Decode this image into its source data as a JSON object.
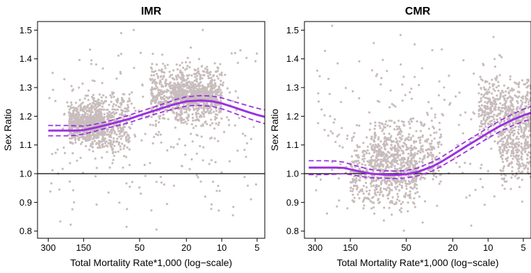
{
  "chart_data": [
    {
      "type": "scatter",
      "title": "IMR",
      "xlabel": "Total Mortality Rate*1,000 (log−scale)",
      "ylabel": "Sex Ratio",
      "x_scale": "log",
      "x_reversed": true,
      "xlim": [
        370,
        4.3
      ],
      "ylim": [
        0.775,
        1.53
      ],
      "x_ticks": [
        300,
        150,
        50,
        20,
        10,
        5
      ],
      "x_tick_labels": [
        "300",
        "150",
        "50",
        "20",
        "10",
        "5"
      ],
      "y_ticks": [
        0.8,
        0.9,
        1.0,
        1.1,
        1.2,
        1.3,
        1.4,
        1.5
      ],
      "y_tick_labels": [
        "0.8",
        "0.9",
        "1.0",
        "1.1",
        "1.2",
        "1.3",
        "1.4",
        "1.5"
      ],
      "reference_line": {
        "y": 1.0,
        "color": "#000000"
      },
      "fit": {
        "x": [
          300,
          250,
          200,
          170,
          150,
          120,
          100,
          80,
          60,
          50,
          40,
          30,
          25,
          20,
          15,
          12,
          10,
          8,
          6,
          5,
          4.3
        ],
        "y": [
          1.15,
          1.15,
          1.15,
          1.15,
          1.152,
          1.16,
          1.168,
          1.178,
          1.192,
          1.203,
          1.216,
          1.232,
          1.242,
          1.252,
          1.255,
          1.252,
          1.245,
          1.232,
          1.215,
          1.205,
          1.198
        ],
        "ci_upper": [
          1.168,
          1.168,
          1.168,
          1.166,
          1.166,
          1.172,
          1.179,
          1.19,
          1.205,
          1.216,
          1.229,
          1.246,
          1.258,
          1.268,
          1.272,
          1.27,
          1.264,
          1.252,
          1.237,
          1.228,
          1.222
        ],
        "ci_lower": [
          1.132,
          1.132,
          1.132,
          1.134,
          1.138,
          1.148,
          1.157,
          1.166,
          1.179,
          1.19,
          1.203,
          1.218,
          1.226,
          1.236,
          1.238,
          1.234,
          1.226,
          1.212,
          1.193,
          1.182,
          1.174
        ],
        "color": "#9B30E0"
      },
      "scatter": {
        "color": "#C8BCBC",
        "density": [
          {
            "x": [
              200,
              100
            ],
            "y": [
              1.1,
              1.25
            ],
            "weight": 12
          },
          {
            "x": [
              150,
              60
            ],
            "y": [
              1.05,
              1.3
            ],
            "weight": 10
          },
          {
            "x": [
              40,
              10
            ],
            "y": [
              1.15,
              1.4
            ],
            "weight": 16
          },
          {
            "x": [
              25,
              12
            ],
            "y": [
              1.22,
              1.32
            ],
            "weight": 8
          },
          {
            "x": [
              300,
              5
            ],
            "y": [
              0.78,
              1.52
            ],
            "weight": 6
          }
        ]
      }
    },
    {
      "type": "scatter",
      "title": "CMR",
      "xlabel": "Total Mortality Rate*1,000 (log−scale)",
      "ylabel": "Sex Ratio",
      "x_scale": "log",
      "x_reversed": true,
      "xlim": [
        370,
        4.3
      ],
      "ylim": [
        0.775,
        1.53
      ],
      "x_ticks": [
        300,
        150,
        50,
        20,
        10,
        5
      ],
      "x_tick_labels": [
        "300",
        "150",
        "50",
        "20",
        "10",
        "5"
      ],
      "y_ticks": [
        0.8,
        0.9,
        1.0,
        1.1,
        1.2,
        1.3,
        1.4,
        1.5
      ],
      "y_tick_labels": [
        "0.8",
        "0.9",
        "1.0",
        "1.1",
        "1.2",
        "1.3",
        "1.4",
        "1.5"
      ],
      "reference_line": {
        "y": 1.0,
        "color": "#000000"
      },
      "fit": {
        "x": [
          340,
          250,
          200,
          170,
          150,
          120,
          100,
          80,
          60,
          50,
          40,
          30,
          25,
          20,
          15,
          12,
          10,
          8,
          6,
          5,
          4.3
        ],
        "y": [
          1.021,
          1.021,
          1.021,
          1.02,
          1.015,
          1.006,
          1.0,
          0.997,
          0.996,
          0.998,
          1.006,
          1.025,
          1.042,
          1.066,
          1.098,
          1.122,
          1.142,
          1.165,
          1.19,
          1.203,
          1.212
        ],
        "ci_upper": [
          1.045,
          1.045,
          1.044,
          1.04,
          1.033,
          1.022,
          1.014,
          1.01,
          1.009,
          1.011,
          1.02,
          1.041,
          1.058,
          1.083,
          1.116,
          1.14,
          1.16,
          1.184,
          1.21,
          1.224,
          1.235
        ],
        "ci_lower": [
          0.997,
          0.997,
          0.998,
          1.0,
          0.997,
          0.99,
          0.986,
          0.984,
          0.983,
          0.985,
          0.992,
          1.009,
          1.026,
          1.049,
          1.08,
          1.104,
          1.124,
          1.146,
          1.17,
          1.182,
          1.189
        ],
        "color": "#9B30E0"
      },
      "scatter": {
        "color": "#C8BCBC",
        "density": [
          {
            "x": [
              150,
              40
            ],
            "y": [
              0.85,
              1.15
            ],
            "weight": 12
          },
          {
            "x": [
              100,
              25
            ],
            "y": [
              0.95,
              1.2
            ],
            "weight": 8
          },
          {
            "x": [
              12,
              4.3
            ],
            "y": [
              1.1,
              1.35
            ],
            "weight": 9
          },
          {
            "x": [
              8,
              4.3
            ],
            "y": [
              0.95,
              1.25
            ],
            "weight": 6
          },
          {
            "x": [
              300,
              5
            ],
            "y": [
              0.78,
              1.52
            ],
            "weight": 5
          }
        ]
      }
    }
  ]
}
